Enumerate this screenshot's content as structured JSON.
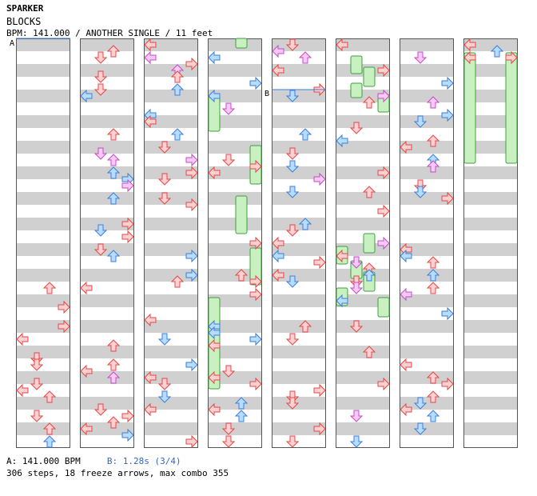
{
  "song": {
    "artist": "SPARKER",
    "title": "BLOCKS",
    "info": "BPM: 141.000 / ANOTHER SINGLE / 11 feet"
  },
  "markers": {
    "a": "A",
    "b": "B"
  },
  "footer": {
    "bpm_label": "A: 141.000 BPM",
    "stop_label": "B: 1.28s (3/4)",
    "stats": "306 steps, 18 freeze arrows, max combo 355"
  },
  "colors": {
    "red_fill": "#ffd0d0",
    "red_stroke": "#e04848",
    "blue_fill": "#b8dcff",
    "blue_stroke": "#3a7fd8",
    "pink_fill": "#f8c8f8",
    "pink_stroke": "#c050c0",
    "freeze_fill": "#c8f0c0",
    "freeze_stroke": "#40a040",
    "stripe": "#d0d0d0"
  },
  "icons": [
    "arrow-left-icon",
    "arrow-down-icon",
    "arrow-up-icon",
    "arrow-right-icon"
  ]
}
